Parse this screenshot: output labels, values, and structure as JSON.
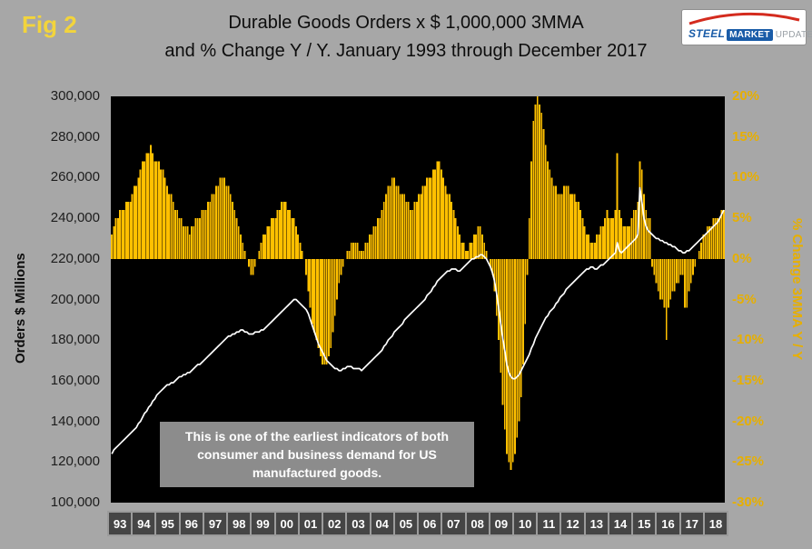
{
  "fig_label": "Fig 2",
  "title_line1": "Durable Goods Orders x $ 1,000,000 3MMA",
  "title_line2": "and % Change Y / Y. January 1993 through December 2017",
  "logo": {
    "steel": "STEEL",
    "market": "MARKET",
    "update": "UPDATE"
  },
  "left_axis": {
    "title": "Orders $ Millions",
    "ticks": [
      "300,000",
      "280,000",
      "260,000",
      "240,000",
      "220,000",
      "200,000",
      "180,000",
      "160,000",
      "140,000",
      "120,000",
      "100,000"
    ]
  },
  "right_axis": {
    "title": "% Change 3MMA Y / Y",
    "ticks": [
      "20%",
      "15%",
      "10%",
      "5%",
      "0%",
      "-5%",
      "-10%",
      "-15%",
      "-20%",
      "-25%",
      "-30%"
    ]
  },
  "x_axis": {
    "years": [
      "93",
      "94",
      "95",
      "96",
      "97",
      "98",
      "99",
      "00",
      "01",
      "02",
      "03",
      "04",
      "05",
      "06",
      "07",
      "08",
      "09",
      "10",
      "11",
      "12",
      "13",
      "14",
      "15",
      "16",
      "17",
      "18"
    ]
  },
  "annotation": {
    "lines": [
      "This is one of the earliest indicators of both",
      "consumer and business demand for US",
      "manufactured goods."
    ]
  },
  "colors": {
    "page_bg": "#a7a7a7",
    "plot_bg": "#000000",
    "bar_gold": "#FFC000",
    "line_white": "#FFFFFF",
    "fig_yellow": "#f2d43c"
  },
  "chart_data": {
    "type": "combo",
    "period": "January 1993 through December 2017",
    "frequency": "monthly",
    "left_ylim": [
      100000,
      300000
    ],
    "right_ylim": [
      -30,
      20
    ],
    "series": [
      {
        "name": "% Change Y / Y 3MMA",
        "type": "bar",
        "axis": "right",
        "color": "#FFC000",
        "values": [
          3,
          4,
          5,
          5,
          6,
          6,
          6,
          7,
          7,
          7,
          8,
          9,
          9,
          10,
          11,
          12,
          12,
          13,
          13,
          14,
          13,
          12,
          12,
          12,
          11,
          11,
          10,
          9,
          8,
          8,
          7,
          6,
          6,
          5,
          5,
          4,
          4,
          4,
          3,
          4,
          4,
          5,
          5,
          5,
          6,
          6,
          6,
          7,
          7,
          8,
          8,
          9,
          9,
          10,
          10,
          10,
          9,
          9,
          8,
          7,
          6,
          5,
          4,
          3,
          2,
          1,
          0,
          -1,
          -2,
          -2,
          -1,
          0,
          1,
          2,
          3,
          3,
          4,
          4,
          5,
          5,
          5,
          6,
          6,
          7,
          7,
          7,
          6,
          6,
          5,
          5,
          4,
          3,
          2,
          1,
          0,
          -2,
          -4,
          -6,
          -8,
          -9,
          -10,
          -11,
          -12,
          -13,
          -13,
          -13,
          -12,
          -11,
          -9,
          -7,
          -5,
          -3,
          -2,
          -1,
          0,
          1,
          1,
          2,
          2,
          2,
          2,
          1,
          1,
          1,
          2,
          2,
          3,
          3,
          4,
          4,
          5,
          5,
          6,
          7,
          8,
          9,
          9,
          10,
          10,
          9,
          9,
          8,
          8,
          8,
          7,
          7,
          6,
          6,
          7,
          7,
          8,
          8,
          9,
          9,
          10,
          10,
          10,
          11,
          11,
          12,
          12,
          11,
          10,
          9,
          8,
          8,
          7,
          6,
          5,
          4,
          3,
          2,
          2,
          1,
          1,
          2,
          2,
          3,
          3,
          4,
          4,
          3,
          2,
          1,
          0,
          -1,
          -2,
          -4,
          -7,
          -10,
          -14,
          -18,
          -21,
          -24,
          -25,
          -26,
          -25,
          -24,
          -22,
          -20,
          -17,
          -13,
          -8,
          -2,
          5,
          12,
          17,
          19,
          20,
          19,
          18,
          16,
          14,
          12,
          11,
          10,
          9,
          9,
          8,
          8,
          8,
          9,
          9,
          9,
          8,
          8,
          8,
          7,
          7,
          6,
          5,
          4,
          3,
          3,
          2,
          2,
          2,
          3,
          3,
          4,
          4,
          5,
          6,
          5,
          5,
          5,
          6,
          13,
          6,
          5,
          4,
          4,
          4,
          4,
          5,
          6,
          6,
          7,
          12,
          11,
          8,
          6,
          5,
          5,
          -1,
          -2,
          -3,
          -4,
          -5,
          -5,
          -6,
          -10,
          -6,
          -5,
          -4,
          -4,
          -3,
          -3,
          -2,
          -2,
          -6,
          -6,
          -4,
          -3,
          -2,
          -1,
          0,
          1,
          2,
          3,
          3,
          4,
          4,
          4,
          5,
          5,
          5,
          5,
          6,
          6
        ]
      },
      {
        "name": "Durable Goods Orders 3MMA ($ Millions)",
        "type": "line",
        "axis": "left",
        "color": "#FFFFFF",
        "values": [
          124000,
          126000,
          127000,
          128000,
          129000,
          130000,
          131000,
          132000,
          133000,
          134000,
          135000,
          136000,
          137000,
          139000,
          140000,
          142000,
          144000,
          145000,
          147000,
          148000,
          150000,
          151000,
          153000,
          154000,
          155000,
          156000,
          157000,
          158000,
          158000,
          159000,
          159000,
          160000,
          161000,
          162000,
          162000,
          163000,
          163000,
          164000,
          164000,
          165000,
          166000,
          167000,
          168000,
          168000,
          169000,
          170000,
          171000,
          172000,
          173000,
          174000,
          175000,
          176000,
          177000,
          178000,
          179000,
          180000,
          181000,
          182000,
          182000,
          183000,
          183000,
          184000,
          184000,
          185000,
          185000,
          184000,
          184000,
          183000,
          183000,
          183000,
          184000,
          184000,
          184000,
          185000,
          185000,
          186000,
          187000,
          188000,
          189000,
          190000,
          191000,
          192000,
          193000,
          194000,
          195000,
          196000,
          197000,
          198000,
          199000,
          200000,
          200000,
          199000,
          198000,
          197000,
          196000,
          195000,
          193000,
          190000,
          187000,
          184000,
          181000,
          178000,
          176000,
          174000,
          172000,
          170000,
          169000,
          168000,
          167000,
          166000,
          166000,
          165000,
          165000,
          166000,
          166000,
          167000,
          167000,
          167000,
          166000,
          166000,
          166000,
          166000,
          165000,
          166000,
          167000,
          168000,
          169000,
          170000,
          171000,
          172000,
          173000,
          174000,
          175000,
          177000,
          178000,
          180000,
          181000,
          182000,
          184000,
          185000,
          186000,
          187000,
          188000,
          190000,
          191000,
          192000,
          193000,
          194000,
          195000,
          196000,
          197000,
          198000,
          199000,
          200000,
          202000,
          203000,
          204000,
          206000,
          207000,
          209000,
          210000,
          211000,
          212000,
          213000,
          214000,
          214000,
          215000,
          215000,
          215000,
          214000,
          214000,
          215000,
          216000,
          217000,
          218000,
          219000,
          220000,
          220000,
          221000,
          221000,
          222000,
          222000,
          221000,
          220000,
          218000,
          216000,
          213000,
          209000,
          203000,
          196000,
          188000,
          181000,
          175000,
          168000,
          164000,
          162000,
          161000,
          161000,
          162000,
          163000,
          165000,
          167000,
          169000,
          171000,
          173000,
          176000,
          178000,
          181000,
          183000,
          185000,
          187000,
          189000,
          191000,
          192000,
          194000,
          195000,
          196000,
          198000,
          199000,
          201000,
          202000,
          203000,
          205000,
          206000,
          207000,
          208000,
          209000,
          210000,
          211000,
          212000,
          213000,
          214000,
          215000,
          215000,
          216000,
          216000,
          215000,
          215000,
          216000,
          217000,
          217000,
          218000,
          219000,
          220000,
          221000,
          222000,
          223000,
          228000,
          224000,
          223000,
          224000,
          225000,
          226000,
          227000,
          228000,
          229000,
          230000,
          232000,
          255000,
          248000,
          240000,
          236000,
          234000,
          233000,
          232000,
          231000,
          230000,
          230000,
          229000,
          229000,
          228000,
          228000,
          227000,
          227000,
          226000,
          226000,
          225000,
          224000,
          224000,
          223000,
          223000,
          224000,
          224000,
          225000,
          226000,
          227000,
          228000,
          229000,
          230000,
          231000,
          232000,
          233000,
          234000,
          235000,
          236000,
          237000,
          238000,
          240000,
          242000,
          244000
        ]
      }
    ]
  }
}
